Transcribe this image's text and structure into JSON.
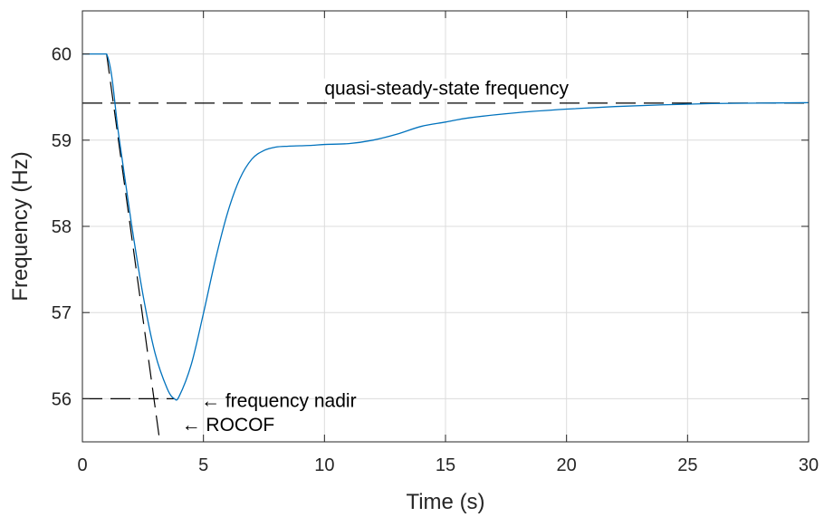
{
  "chart_data": {
    "type": "line",
    "xlabel": "Time (s)",
    "ylabel": "Frequency (Hz)",
    "xlim": [
      0,
      30
    ],
    "ylim": [
      55.5,
      60.5
    ],
    "grid": true,
    "x_ticks": [
      "0",
      "5",
      "10",
      "15",
      "20",
      "25",
      "30"
    ],
    "y_ticks": [
      "56",
      "57",
      "58",
      "59",
      "60"
    ],
    "series": [
      {
        "color": "#0072BD",
        "x": [
          0,
          1,
          1.5,
          2,
          2.5,
          3,
          3.5,
          3.8,
          4,
          4.5,
          5,
          5.5,
          6,
          6.5,
          7,
          7.5,
          8,
          8.5,
          9,
          9.5,
          10,
          11,
          12,
          13,
          14,
          15,
          16,
          18,
          20,
          22,
          24,
          26,
          28,
          30
        ],
        "y": [
          60,
          60,
          59.06,
          58.08,
          57.21,
          56.53,
          56.12,
          56.0,
          56.03,
          56.4,
          56.99,
          57.62,
          58.16,
          58.55,
          58.78,
          58.88,
          58.92,
          58.93,
          58.935,
          58.94,
          58.95,
          58.96,
          59.0,
          59.07,
          59.16,
          59.21,
          59.26,
          59.32,
          59.36,
          59.39,
          59.41,
          59.425,
          59.43,
          59.435
        ]
      }
    ],
    "reference_lines": [
      {
        "style": "dashed",
        "x": [
          0,
          30
        ],
        "y": [
          59.43,
          59.43
        ]
      },
      {
        "style": "dashed",
        "x": [
          0,
          3.8
        ],
        "y": [
          56.0,
          56.0
        ]
      },
      {
        "style": "dashed",
        "x": [
          1,
          3.2
        ],
        "y": [
          60.0,
          55.5
        ]
      }
    ],
    "annotations": [
      {
        "text": "quasi-steady-state frequency",
        "x": 10,
        "y": 59.6
      },
      {
        "text": "← frequency nadir",
        "x": 4.9,
        "y": 55.98
      },
      {
        "text": "← ROCOF",
        "x": 4.1,
        "y": 55.7
      }
    ]
  }
}
